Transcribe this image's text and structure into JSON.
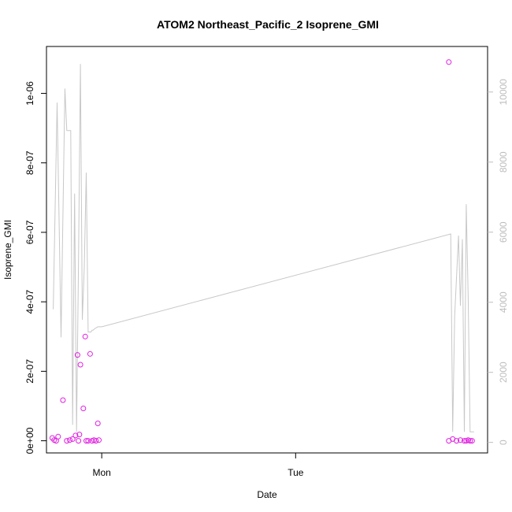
{
  "chart_data": {
    "type": "line+scatter",
    "title": "ATOM2 Northeast_Pacific_2 Isoprene_GMI",
    "xlabel": "Date",
    "ylabel": "Isoprene_GMI",
    "x_ticks": [
      {
        "value": 0.0,
        "label": "Mon"
      },
      {
        "value": 1.0,
        "label": "Tue"
      }
    ],
    "xlim": [
      -0.285,
      1.99
    ],
    "y_left": {
      "lim": [
        -3.5e-08,
        1.135e-06
      ],
      "ticks": [
        {
          "value": 0,
          "label": "0e+00"
        },
        {
          "value": 2e-07,
          "label": "2e-07"
        },
        {
          "value": 4e-07,
          "label": "4e-07"
        },
        {
          "value": 6e-07,
          "label": "6e-07"
        },
        {
          "value": 8e-07,
          "label": "8e-07"
        },
        {
          "value": 1e-06,
          "label": "1e-06"
        }
      ]
    },
    "y_right": {
      "lim": [
        -300,
        11300
      ],
      "ticks": [
        {
          "value": 0,
          "label": "0"
        },
        {
          "value": 2000,
          "label": "2000"
        },
        {
          "value": 4000,
          "label": "4000"
        },
        {
          "value": 6000,
          "label": "6000"
        },
        {
          "value": 8000,
          "label": "8000"
        },
        {
          "value": 10000,
          "label": "10000"
        }
      ]
    },
    "colors": {
      "points": "#e020e0",
      "line": "#c8c8c8",
      "right_axis": "#bdbdbd"
    },
    "series": [
      {
        "type": "line",
        "axis": "right",
        "x": [
          -0.25,
          -0.23,
          -0.21,
          -0.19,
          -0.18,
          -0.16,
          -0.15,
          -0.14,
          -0.13,
          -0.12,
          -0.11,
          -0.1,
          -0.09,
          -0.08,
          -0.07,
          -0.06,
          -0.055,
          -0.05,
          -0.045,
          -0.035,
          -0.02,
          -0.01,
          0.0,
          1.8,
          1.81,
          1.82,
          1.84,
          1.85,
          1.86,
          1.87,
          1.88,
          1.89,
          1.9,
          1.91,
          1.92
        ],
        "y": [
          3800,
          9700,
          3000,
          10100,
          8900,
          8900,
          500,
          7100,
          300,
          5000,
          10800,
          3500,
          5000,
          7700,
          3150,
          3150,
          3150,
          3200,
          3200,
          3250,
          3300,
          3300,
          3300,
          5950,
          300,
          3600,
          5900,
          3900,
          5800,
          300,
          6800,
          4100,
          300,
          300,
          300
        ]
      },
      {
        "type": "scatter",
        "axis": "left",
        "points": [
          [
            -0.255,
            8e-09
          ],
          [
            -0.245,
            2e-09
          ],
          [
            -0.235,
            0.0
          ],
          [
            -0.225,
            1.2e-08
          ],
          [
            -0.2,
            1.17e-07
          ],
          [
            -0.18,
            0.0
          ],
          [
            -0.165,
            2e-09
          ],
          [
            -0.15,
            5e-09
          ],
          [
            -0.135,
            1.5e-08
          ],
          [
            -0.125,
            2.47e-07
          ],
          [
            -0.12,
            0.0
          ],
          [
            -0.115,
            1.8e-08
          ],
          [
            -0.11,
            2.19e-07
          ],
          [
            -0.095,
            9.3e-08
          ],
          [
            -0.085,
            3e-07
          ],
          [
            -0.08,
            0.0
          ],
          [
            -0.07,
            0.0
          ],
          [
            -0.06,
            2.5e-07
          ],
          [
            -0.05,
            0.0
          ],
          [
            -0.04,
            2e-09
          ],
          [
            -0.03,
            0.0
          ],
          [
            -0.02,
            5e-08
          ],
          [
            -0.015,
            2e-09
          ],
          [
            1.79,
            0.0
          ],
          [
            1.79,
            1.09e-06
          ],
          [
            1.81,
            5e-09
          ],
          [
            1.83,
            0.0
          ],
          [
            1.85,
            2e-09
          ],
          [
            1.87,
            0.0
          ],
          [
            1.88,
            0.0
          ],
          [
            1.89,
            2e-09
          ],
          [
            1.9,
            0.0
          ],
          [
            1.91,
            0.0
          ]
        ]
      }
    ]
  }
}
